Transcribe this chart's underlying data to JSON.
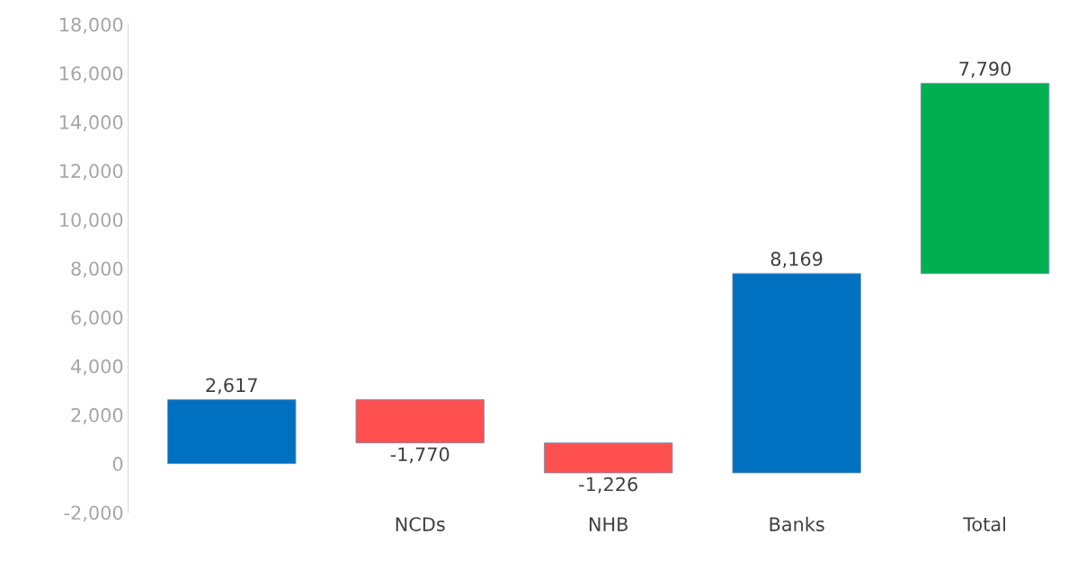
{
  "chart_data": {
    "type": "bar",
    "categories": [
      null,
      "NCDs",
      "NHB",
      "Banks",
      "Total"
    ],
    "values": [
      2617,
      -1770,
      -1226,
      8169,
      7790
    ],
    "base": [
      0,
      2617,
      847,
      -379,
      7790
    ],
    "colors": [
      "#0070c0",
      "#ff5050",
      "#ff5050",
      "#0070c0",
      "#00b050"
    ],
    "value_labels": [
      "2,617",
      "-1,770",
      "-1,226",
      "8,169",
      "7,790"
    ],
    "ylim": [
      -2000,
      18000
    ],
    "yticks": [
      {
        "value": -2000,
        "label": "-2,000"
      },
      0,
      {
        "value": 2000,
        "label": "2,000"
      },
      {
        "value": 4000,
        "label": "4,000"
      },
      {
        "value": 6000,
        "label": "6,000"
      },
      {
        "value": 8000,
        "label": "8,000"
      },
      {
        "value": 10000,
        "label": "10,000"
      },
      {
        "value": 12000,
        "label": "12,000"
      },
      {
        "value": 14000,
        "label": "14,000"
      },
      {
        "value": 16000,
        "label": "16,000"
      },
      {
        "value": 18000,
        "label": "18,000"
      }
    ],
    "grid": false,
    "legend": false
  }
}
